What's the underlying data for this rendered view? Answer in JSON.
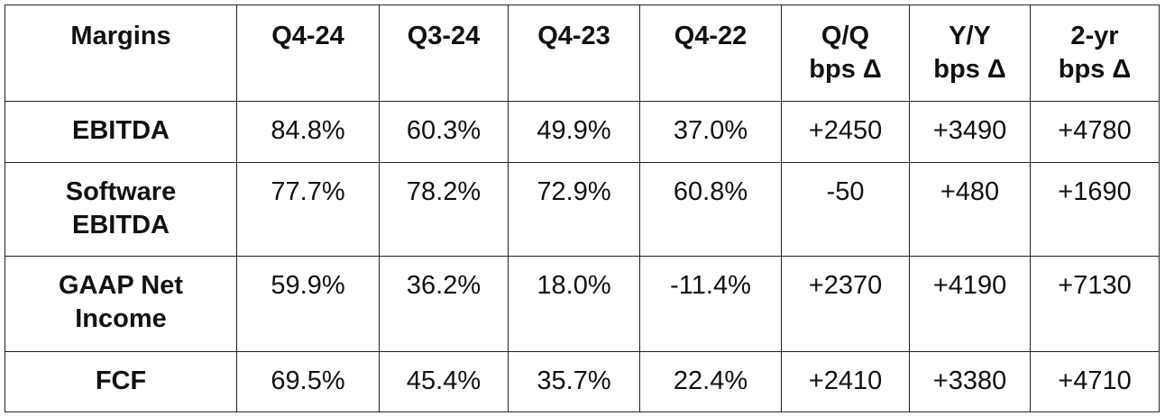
{
  "table": {
    "header": [
      "Margins",
      "Q4-24",
      "Q3-24",
      "Q4-23",
      "Q4-22",
      "Q/Q\nbps Δ",
      "Y/Y\nbps Δ",
      "2-yr\nbps Δ"
    ],
    "rows": [
      [
        "EBITDA",
        "84.8%",
        "60.3%",
        "49.9%",
        "37.0%",
        "+2450",
        "+3490",
        "+4780"
      ],
      [
        "Software\nEBITDA",
        "77.7%",
        "78.2%",
        "72.9%",
        "60.8%",
        "-50",
        "+480",
        "+1690"
      ],
      [
        "GAAP Net\nIncome",
        "59.9%",
        "36.2%",
        "18.0%",
        "-11.4%",
        "+2370",
        "+4190",
        "+7130"
      ],
      [
        "FCF",
        "69.5%",
        "45.4%",
        "35.7%",
        "22.4%",
        "+2410",
        "+3380",
        "+4710"
      ]
    ]
  }
}
